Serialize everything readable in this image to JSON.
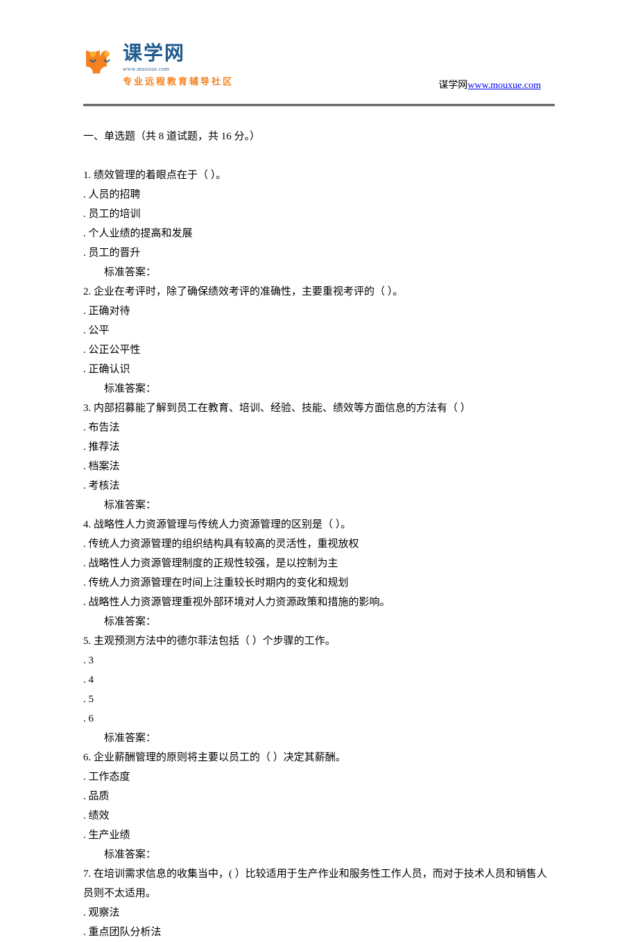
{
  "header": {
    "logo_title": "课学网",
    "logo_domain": "www.mouxue.com",
    "logo_subtitle": "专业远程教育辅导社区",
    "site_label": "谋学网",
    "site_url": "www.mouxue.com"
  },
  "colors": {
    "logo_blue": "#1e5a8e",
    "logo_orange": "#f5821f",
    "link_blue": "#0000ff",
    "text_black": "#000000",
    "bg_white": "#ffffff"
  },
  "section": {
    "title": "一、单选题（共 8 道试题，共 16 分。）"
  },
  "questions": [
    {
      "number": "1.",
      "text": "绩效管理的着眼点在于（ ）。",
      "options": [
        ". 人员的招聘",
        ". 员工的培训",
        ". 个人业绩的提高和发展",
        ". 员工的晋升"
      ],
      "answer": "标准答案："
    },
    {
      "number": "2.",
      "text": "企业在考评时，除了确保绩效考评的准确性，主要重视考评的（ ）。",
      "options": [
        ". 正确对待",
        ". 公平",
        ". 公正公平性",
        ". 正确认识"
      ],
      "answer": "标准答案："
    },
    {
      "number": "3.",
      "text": "内部招募能了解到员工在教育、培训、经验、技能、绩效等方面信息的方法有（ ）",
      "options": [
        ". 布告法",
        ". 推荐法",
        ". 档案法",
        ". 考核法"
      ],
      "answer": "标准答案："
    },
    {
      "number": "4.",
      "text": "战略性人力资源管理与传统人力资源管理的区别是（ ）。",
      "options": [
        ". 传统人力资源管理的组织结构具有较高的灵活性，重视放权",
        ". 战略性人力资源管理制度的正规性较强，是以控制为主",
        ". 传统人力资源管理在时间上注重较长时期内的变化和规划",
        ". 战略性人力资源管理重视外部环境对人力资源政策和措施的影响。"
      ],
      "answer": "标准答案："
    },
    {
      "number": "5.",
      "text": "主观预测方法中的德尔菲法包括（ ）个步骤的工作。",
      "options": [
        ". 3",
        ". 4",
        ". 5",
        ". 6"
      ],
      "answer": "标准答案："
    },
    {
      "number": "6.",
      "text": "企业薪酬管理的原则将主要以员工的（ ）决定其薪酬。",
      "options": [
        ". 工作态度",
        ". 品质",
        ". 绩效",
        ". 生产业绩"
      ],
      "answer": "标准答案："
    },
    {
      "number": "7.",
      "text": "在培训需求信息的收集当中，( ）比较适用于生产作业和服务性工作人员，而对于技术人员和销售人员则不太适用。",
      "options": [
        ". 观察法",
        ". 重点团队分析法"
      ],
      "answer": null
    }
  ]
}
